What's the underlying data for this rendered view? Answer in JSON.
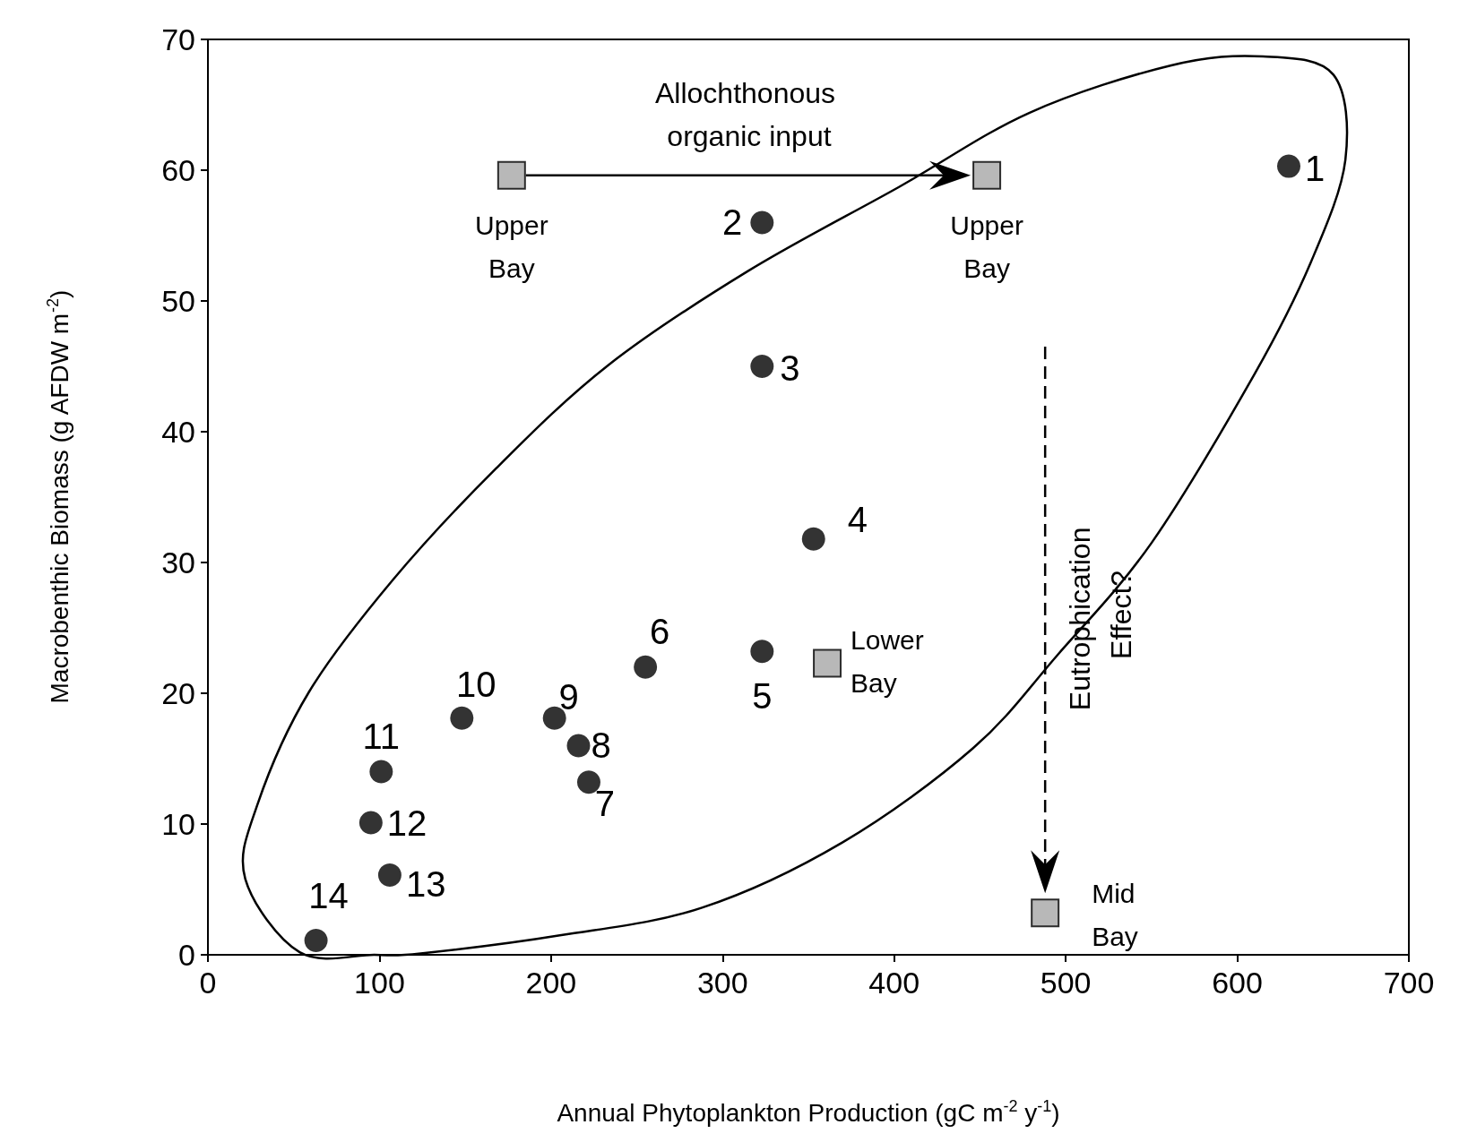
{
  "chart_data": {
    "type": "scatter",
    "xlabel": "Annual Phytoplankton Production (gC m$^{-2}$ y$^{-1}$)",
    "ylabel": "Macrobenthic Biomass (g AFDW m$^{-2}$)",
    "xlim": [
      0,
      700
    ],
    "xticks": [
      0,
      100,
      200,
      300,
      400,
      500,
      600,
      700
    ],
    "ylim": [
      0,
      70
    ],
    "yticks": [
      0,
      10,
      20,
      30,
      40,
      50,
      60,
      70
    ],
    "grid": false,
    "series": [
      {
        "color": "#000000",
        "marker": "circle",
        "x": [
          630,
          323,
          323,
          353,
          323,
          255,
          222,
          216,
          202,
          148,
          101,
          95,
          106,
          63
        ],
        "values": [
          60.3,
          56,
          45,
          31.8,
          23.2,
          22,
          13.2,
          16,
          18.1,
          18.1,
          14,
          10.1,
          6.1,
          1.1
        ]
      },
      {
        "color": "#a6a6a6",
        "marker": "square",
        "x": [
          177,
          454,
          361,
          488
        ],
        "values": [
          59.6,
          59.6,
          22.3,
          3.2
        ]
      }
    ],
    "annotations": [
      "Allochthonous organic input",
      "Eutrophication Effect?",
      {
        "text": "1",
        "x": 630,
        "y": 60.3
      },
      {
        "text": "2",
        "x": 323,
        "y": 56
      },
      {
        "text": "3",
        "x": 323,
        "y": 45
      },
      {
        "text": "4",
        "x": 353,
        "y": 31.8
      },
      {
        "text": "5",
        "x": 323,
        "y": 23.2
      },
      {
        "text": "6",
        "x": 255,
        "y": 22
      },
      {
        "text": "7",
        "x": 222,
        "y": 13.2
      },
      {
        "text": "8",
        "x": 216,
        "y": 16
      },
      {
        "text": "9",
        "x": 202,
        "y": 18.1
      },
      {
        "text": "10",
        "x": 148,
        "y": 18.1
      },
      {
        "text": "11",
        "x": 101,
        "y": 14
      },
      {
        "text": "12",
        "x": 95,
        "y": 10.1
      },
      {
        "text": "13",
        "x": 106,
        "y": 6.1
      },
      {
        "text": "14",
        "x": 63,
        "y": 1.1
      },
      {
        "text": "Upper Bay",
        "x": 177,
        "y": 59.6
      },
      {
        "text": "Upper Bay",
        "x": 454,
        "y": 59.6
      },
      {
        "text": "Lower Bay",
        "x": 361,
        "y": 22.3
      },
      {
        "text": "Mid Bay",
        "x": 488,
        "y": 3.2
      }
    ]
  }
}
